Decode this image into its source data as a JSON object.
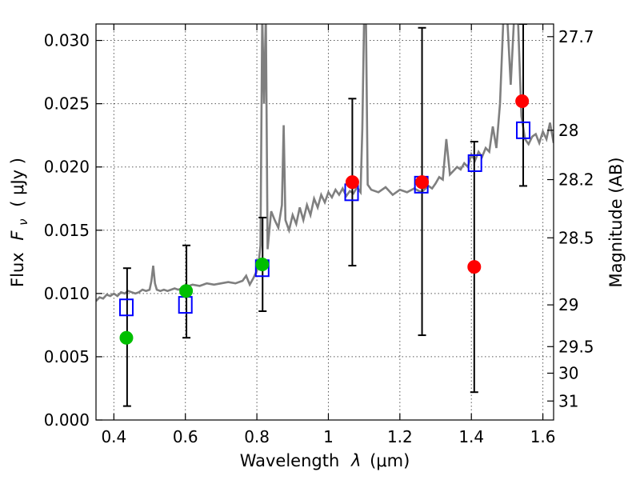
{
  "chart_data": {
    "type": "scatter",
    "title": "",
    "xlabel_text": "Wavelength",
    "xlabel_symbol": "λ",
    "xlabel_unit": "(μm)",
    "ylabel_text": "Flux",
    "ylabel_symbol": "F",
    "ylabel_subscript": "ν",
    "ylabel_unit": "( μJy )",
    "y2label": "Magnitude (AB)",
    "xlim": [
      0.35,
      1.63
    ],
    "ylim": [
      0.0,
      0.0313
    ],
    "grid": true,
    "x_ticks": [
      0.4,
      0.6,
      0.8,
      1.0,
      1.2,
      1.4,
      1.6
    ],
    "x_tick_labels": [
      "0.4",
      "0.6",
      "0.8",
      "1",
      "1.2",
      "1.4",
      "1.6"
    ],
    "y_ticks": [
      0.0,
      0.005,
      0.01,
      0.015,
      0.02,
      0.025,
      0.03
    ],
    "y_tick_labels": [
      "0.000",
      "0.005",
      "0.010",
      "0.015",
      "0.020",
      "0.025",
      "0.030"
    ],
    "y2_ticks": [
      {
        "label": "27.7",
        "flux": 0.0303
      },
      {
        "label": "28",
        "flux": 0.0229
      },
      {
        "label": "28.2",
        "flux": 0.019
      },
      {
        "label": "28.5",
        "flux": 0.0144
      },
      {
        "label": "29",
        "flux": 0.0091
      },
      {
        "label": "29.5",
        "flux": 0.0058
      },
      {
        "label": "30",
        "flux": 0.0037
      },
      {
        "label": "31",
        "flux": 0.0015
      }
    ],
    "series": [
      {
        "kind": "line",
        "color": "#7f7f7f",
        "x": [
          0.35,
          0.36,
          0.37,
          0.38,
          0.39,
          0.4,
          0.41,
          0.42,
          0.43,
          0.44,
          0.45,
          0.46,
          0.47,
          0.48,
          0.49,
          0.5,
          0.505,
          0.51,
          0.515,
          0.52,
          0.53,
          0.54,
          0.55,
          0.56,
          0.57,
          0.58,
          0.59,
          0.6,
          0.62,
          0.64,
          0.66,
          0.68,
          0.7,
          0.72,
          0.74,
          0.76,
          0.77,
          0.78,
          0.79,
          0.8,
          0.805,
          0.81,
          0.815,
          0.82,
          0.825,
          0.83,
          0.835,
          0.84,
          0.85,
          0.86,
          0.87,
          0.875,
          0.88,
          0.89,
          0.9,
          0.91,
          0.92,
          0.93,
          0.94,
          0.95,
          0.96,
          0.97,
          0.98,
          0.99,
          1.0,
          1.01,
          1.02,
          1.03,
          1.04,
          1.05,
          1.06,
          1.07,
          1.08,
          1.09,
          1.095,
          1.1,
          1.105,
          1.11,
          1.12,
          1.14,
          1.16,
          1.18,
          1.2,
          1.22,
          1.24,
          1.26,
          1.28,
          1.29,
          1.3,
          1.31,
          1.32,
          1.33,
          1.34,
          1.35,
          1.36,
          1.37,
          1.38,
          1.39,
          1.4,
          1.41,
          1.42,
          1.43,
          1.44,
          1.45,
          1.46,
          1.47,
          1.48,
          1.49,
          1.5,
          1.51,
          1.52,
          1.53,
          1.54,
          1.55,
          1.56,
          1.57,
          1.58,
          1.59,
          1.6,
          1.61,
          1.62,
          1.63
        ],
        "y": [
          0.0094,
          0.0097,
          0.0096,
          0.0099,
          0.0098,
          0.01,
          0.0098,
          0.0101,
          0.01,
          0.0102,
          0.0101,
          0.01,
          0.0101,
          0.0103,
          0.0102,
          0.0103,
          0.011,
          0.0122,
          0.0108,
          0.0103,
          0.0102,
          0.0103,
          0.0102,
          0.0103,
          0.0104,
          0.0103,
          0.0104,
          0.0105,
          0.0107,
          0.0106,
          0.0108,
          0.0107,
          0.0108,
          0.0109,
          0.0108,
          0.011,
          0.0114,
          0.0107,
          0.0112,
          0.0118,
          0.0124,
          0.0138,
          0.032,
          0.025,
          0.032,
          0.0135,
          0.015,
          0.0165,
          0.0158,
          0.0152,
          0.017,
          0.0233,
          0.0158,
          0.015,
          0.0162,
          0.0155,
          0.0168,
          0.0158,
          0.017,
          0.0162,
          0.0175,
          0.0168,
          0.0178,
          0.0172,
          0.018,
          0.0176,
          0.0182,
          0.0178,
          0.0183,
          0.0177,
          0.0181,
          0.0179,
          0.0184,
          0.018,
          0.023,
          0.032,
          0.032,
          0.0186,
          0.0182,
          0.018,
          0.0184,
          0.0178,
          0.0182,
          0.018,
          0.0183,
          0.018,
          0.0185,
          0.0183,
          0.0187,
          0.0192,
          0.019,
          0.0222,
          0.0194,
          0.0197,
          0.02,
          0.0198,
          0.0203,
          0.02,
          0.021,
          0.0205,
          0.0212,
          0.0208,
          0.0215,
          0.0212,
          0.0232,
          0.0215,
          0.025,
          0.032,
          0.032,
          0.0265,
          0.032,
          0.032,
          0.024,
          0.0222,
          0.0218,
          0.0224,
          0.0226,
          0.0219,
          0.0228,
          0.0222,
          0.0235,
          0.0219
        ]
      },
      {
        "kind": "open-square",
        "color": "#0000ff",
        "x": [
          0.435,
          0.6,
          0.815,
          1.065,
          1.26,
          1.41,
          1.545
        ],
        "y": [
          0.0089,
          0.0091,
          0.012,
          0.018,
          0.0186,
          0.0203,
          0.0229
        ]
      },
      {
        "kind": "filled-circle",
        "color": "#00bf00",
        "x": [
          0.435,
          0.602,
          0.815
        ],
        "y": [
          0.0065,
          0.0102,
          0.0123
        ]
      },
      {
        "kind": "filled-circle",
        "color": "#ff0000",
        "x": [
          1.067,
          1.262,
          1.408,
          1.542
        ],
        "y": [
          0.0188,
          0.0188,
          0.0121,
          0.0252
        ]
      }
    ],
    "error_bars": [
      {
        "x": 0.437,
        "low": 0.0011,
        "high": 0.012
      },
      {
        "x": 0.603,
        "low": 0.0065,
        "high": 0.0138
      },
      {
        "x": 0.816,
        "low": 0.0086,
        "high": 0.016
      },
      {
        "x": 1.067,
        "low": 0.0122,
        "high": 0.0254
      },
      {
        "x": 1.262,
        "low": 0.0067,
        "high": 0.031
      },
      {
        "x": 1.408,
        "low": 0.0022,
        "high": 0.022
      },
      {
        "x": 1.545,
        "low": 0.0185,
        "high": 0.0313
      }
    ]
  }
}
